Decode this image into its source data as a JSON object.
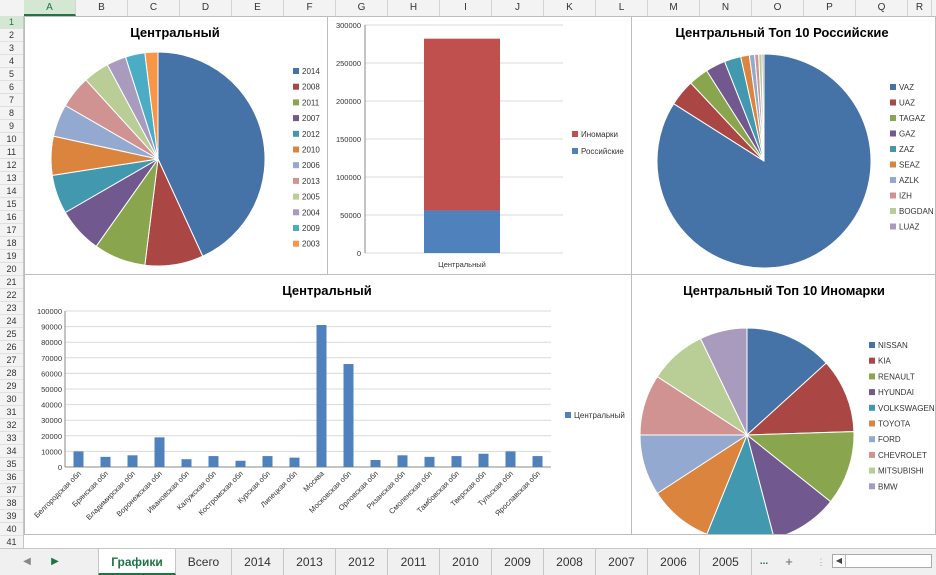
{
  "columns": [
    "A",
    "B",
    "C",
    "D",
    "E",
    "F",
    "G",
    "H",
    "I",
    "J",
    "K",
    "L",
    "M",
    "N",
    "O",
    "P",
    "Q",
    "R"
  ],
  "rows": [
    "1",
    "2",
    "3",
    "4",
    "5",
    "6",
    "7",
    "8",
    "9",
    "10",
    "11",
    "12",
    "13",
    "14",
    "15",
    "16",
    "17",
    "18",
    "19",
    "20",
    "21",
    "22",
    "23",
    "24",
    "25",
    "26",
    "27",
    "28",
    "29",
    "30",
    "31",
    "32",
    "33",
    "34",
    "35",
    "36",
    "37",
    "38",
    "39",
    "40",
    "41"
  ],
  "sheet_tabs": {
    "items": [
      "Графики",
      "Всего",
      "2014",
      "2013",
      "2012",
      "2011",
      "2010",
      "2009",
      "2008",
      "2007",
      "2006",
      "2005"
    ],
    "active": "Графики",
    "more": "...",
    "add": "+"
  },
  "chart_data": [
    {
      "type": "pie",
      "title": "Центральный",
      "legend_position": "right",
      "categories": [
        "2014",
        "2008",
        "2011",
        "2007",
        "2012",
        "2010",
        "2006",
        "2013",
        "2005",
        "2004",
        "2009",
        "2003"
      ],
      "values": [
        44,
        9,
        8,
        7,
        6,
        6,
        5,
        5,
        4,
        3,
        3,
        2
      ],
      "colors": [
        "#4572a7",
        "#aa4643",
        "#89a54e",
        "#71588f",
        "#4198af",
        "#db843d",
        "#93a9cf",
        "#d19392",
        "#b9cd96",
        "#a99bbd",
        "#4bacc6",
        "#f79646"
      ]
    },
    {
      "type": "bar",
      "stacked": true,
      "title": "",
      "categories": [
        "Центральный"
      ],
      "series": [
        {
          "name": "Российские",
          "values": [
            56000
          ],
          "color": "#4f81bd"
        },
        {
          "name": "Иномарки",
          "values": [
            226000
          ],
          "color": "#c0504d"
        }
      ],
      "legend": [
        "Иномарки",
        "Российские"
      ],
      "legend_position": "right",
      "ylim": [
        0,
        300000
      ],
      "yticks": [
        "0",
        "50000",
        "100000",
        "150000",
        "200000",
        "250000",
        "300000"
      ]
    },
    {
      "type": "pie",
      "title": "Центральный Топ 10 Российские",
      "legend_position": "right",
      "categories": [
        "VAZ",
        "UAZ",
        "TAGAZ",
        "GAZ",
        "ZAZ",
        "SEAZ",
        "AZLK",
        "IZH",
        "BOGDAN",
        "LUAZ"
      ],
      "values": [
        84,
        4,
        3,
        3,
        2.5,
        1.3,
        0.8,
        0.6,
        0.5,
        0.3
      ],
      "colors": [
        "#4572a7",
        "#aa4643",
        "#89a54e",
        "#71588f",
        "#4198af",
        "#db843d",
        "#93a9cf",
        "#d19392",
        "#b9cd96",
        "#a99bbd"
      ]
    },
    {
      "type": "bar",
      "title": "Центральный",
      "legend_position": "right",
      "categories": [
        "Белгородская обл",
        "Брянская обл",
        "Владимирская обл",
        "Воронежская обл",
        "Ивановская обл",
        "Калужская обл",
        "Костромская обл",
        "Курская обл",
        "Липецкая обл",
        "Москва",
        "Московская обл",
        "Орловская обл",
        "Рязанская обл",
        "Смоленская обл",
        "Тамбовская обл",
        "Тверская обл",
        "Тульская обл",
        "Ярославская обл"
      ],
      "series": [
        {
          "name": "Центральный",
          "values": [
            10000,
            6500,
            7500,
            19000,
            5000,
            7000,
            4000,
            7000,
            6000,
            91000,
            66000,
            4500,
            7500,
            6500,
            7000,
            8500,
            10000,
            7000
          ],
          "color": "#4f81bd"
        }
      ],
      "ylim": [
        0,
        100000
      ],
      "yticks": [
        "0",
        "10000",
        "20000",
        "30000",
        "40000",
        "50000",
        "60000",
        "70000",
        "80000",
        "90000",
        "100000"
      ]
    },
    {
      "type": "pie",
      "title": "Центральный Топ 10 Иномарки",
      "legend_position": "right",
      "categories": [
        "NISSAN",
        "KIA",
        "RENAULT",
        "HYUNDAI",
        "VOLKSWAGEN",
        "TOYOTA",
        "FORD",
        "CHEVROLET",
        "MITSUBISHI",
        "BMW"
      ],
      "values": [
        13,
        11,
        11,
        10,
        10,
        9.5,
        9,
        9,
        8.5,
        7
      ],
      "colors": [
        "#4572a7",
        "#aa4643",
        "#89a54e",
        "#71588f",
        "#4198af",
        "#db843d",
        "#93a9cf",
        "#d19392",
        "#b9cd96",
        "#a99bbd"
      ]
    }
  ]
}
